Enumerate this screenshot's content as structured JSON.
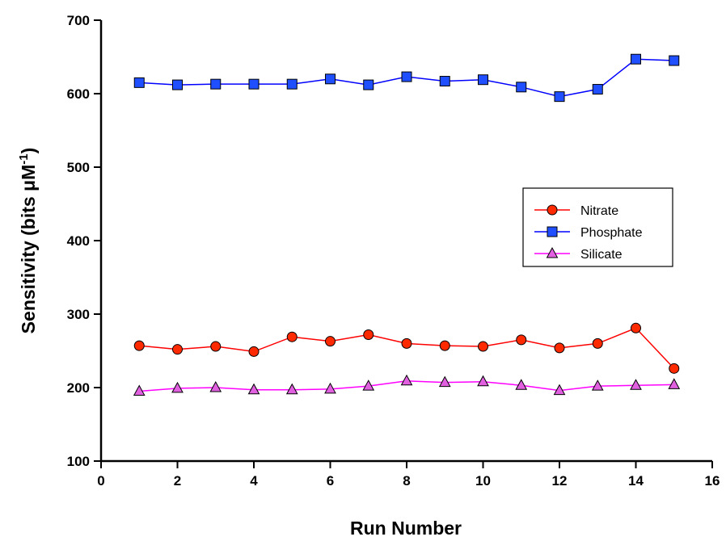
{
  "chart_data": {
    "type": "line",
    "xlabel": "Run Number",
    "ylabel_main": "Sensitivity (bits ",
    "ylabel_mu": "μ",
    "ylabel_unit": "M",
    "ylabel_sup": "-1",
    "ylabel_close": ")",
    "xlim": [
      0,
      16
    ],
    "ylim": [
      100,
      700
    ],
    "xticks": [
      0,
      2,
      4,
      6,
      8,
      10,
      12,
      14,
      16
    ],
    "yticks": [
      100,
      200,
      300,
      400,
      500,
      600,
      700
    ],
    "grid": false,
    "legend_position": "right",
    "x": [
      1,
      2,
      3,
      4,
      5,
      6,
      7,
      8,
      9,
      10,
      11,
      12,
      13,
      14,
      15
    ],
    "series": [
      {
        "name": "Nitrate",
        "marker": "circle",
        "line_color": "#ff0000",
        "marker_color": "#ff2a00",
        "values": [
          257,
          252,
          256,
          249,
          269,
          263,
          272,
          260,
          257,
          256,
          265,
          254,
          260,
          281,
          226
        ]
      },
      {
        "name": "Phosphate",
        "marker": "square",
        "line_color": "#0000ff",
        "marker_color": "#1f4fff",
        "values": [
          615,
          612,
          613,
          613,
          613,
          620,
          612,
          623,
          617,
          619,
          609,
          596,
          606,
          647,
          645
        ]
      },
      {
        "name": "Silicate",
        "marker": "triangle",
        "line_color": "#ff00ff",
        "marker_color": "#e060e0",
        "values": [
          195,
          199,
          200,
          197,
          197,
          198,
          202,
          209,
          207,
          208,
          203,
          196,
          202,
          203,
          204
        ]
      }
    ]
  }
}
